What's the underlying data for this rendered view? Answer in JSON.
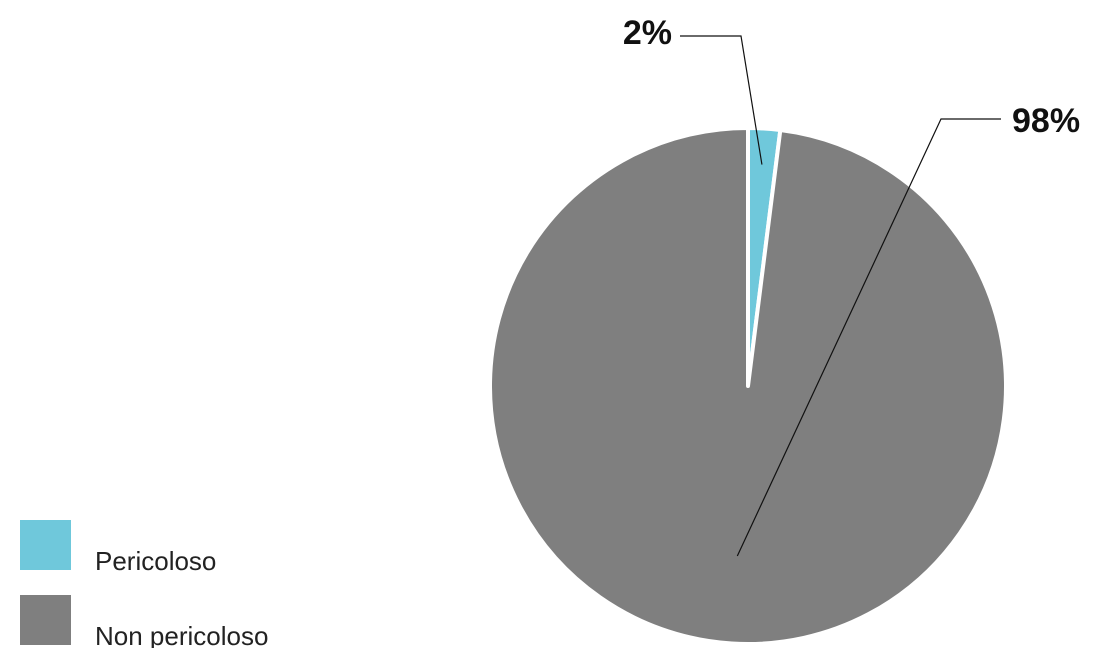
{
  "chart_data": {
    "type": "pie",
    "title": "",
    "start_angle_deg": 0,
    "direction": "clockwise",
    "slices": [
      {
        "name": "Pericoloso",
        "value": 2,
        "label": "2%",
        "color": "#6fc8db"
      },
      {
        "name": "Non pericoloso",
        "value": 98,
        "label": "98%",
        "color": "#7f7f7f"
      }
    ],
    "legend": {
      "placement": "bottom-left",
      "entries": [
        "Pericoloso",
        "Non pericoloso"
      ]
    }
  }
}
